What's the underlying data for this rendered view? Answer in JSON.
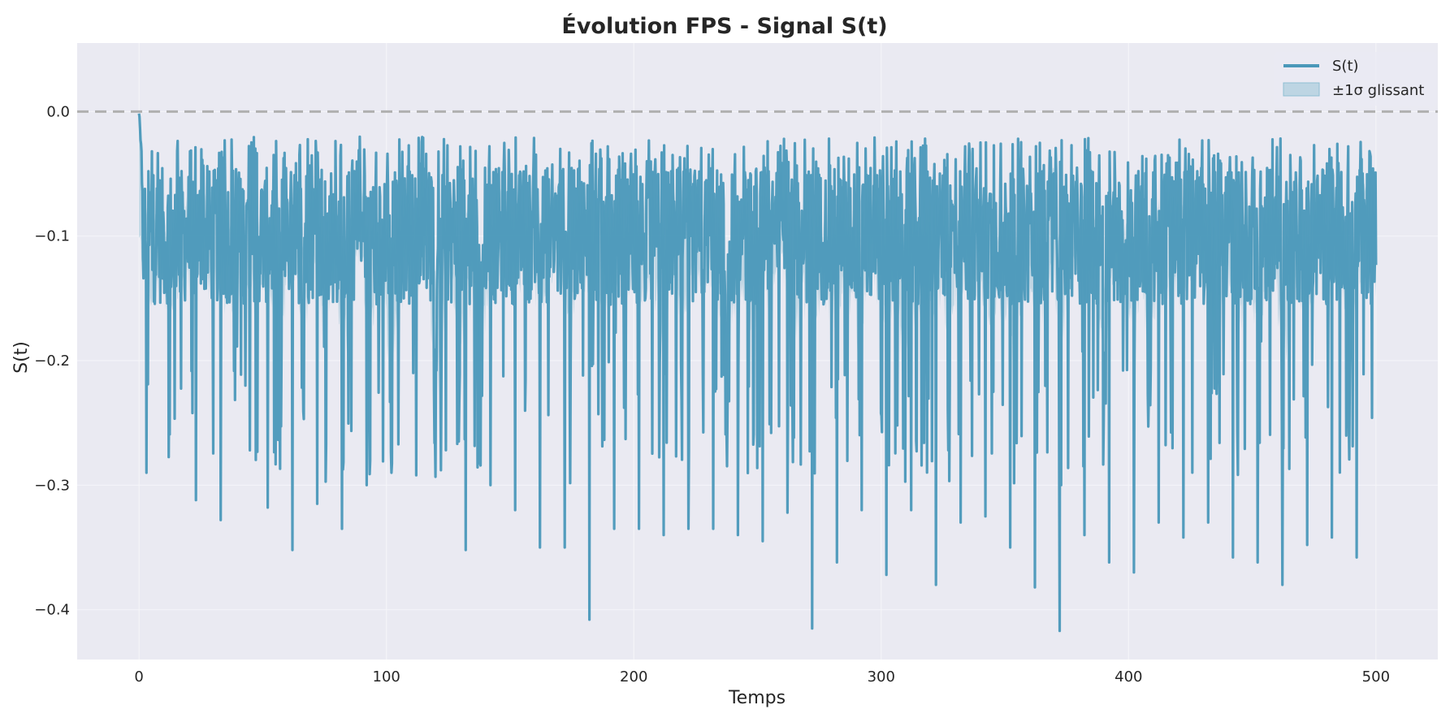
{
  "chart_data": {
    "type": "line",
    "title": "Évolution FPS - Signal S(t)",
    "xlabel": "Temps",
    "ylabel": "S(t)",
    "xlim": [
      -25,
      525
    ],
    "ylim": [
      -0.44,
      0.055
    ],
    "x_ticks": [
      0,
      100,
      200,
      300,
      400,
      500
    ],
    "x_tick_labels": [
      "0",
      "100",
      "200",
      "300",
      "400",
      "500"
    ],
    "y_ticks": [
      0.0,
      -0.1,
      -0.2,
      -0.3,
      -0.4
    ],
    "y_tick_labels": [
      "0.0",
      "−0.1",
      "−0.2",
      "−0.3",
      "−0.4"
    ],
    "grid": true,
    "reference_line": {
      "y": 0.0,
      "style": "dashed",
      "color": "#b0b0b0"
    },
    "legend": {
      "placement": "top-right",
      "entries": [
        {
          "label": "S(t)",
          "kind": "line"
        },
        {
          "label": "±1σ glissant",
          "kind": "band"
        }
      ]
    },
    "series": [
      {
        "name": "S(t)",
        "color": "#4a98b9",
        "x_start": 0,
        "x_end": 500,
        "n_points": 2500,
        "baseline_mean": -0.1,
        "oscillation_period": 9,
        "typical_min": -0.3,
        "observed_min": -0.417,
        "observed_max": 0.008,
        "deep_dips": [
          {
            "x": 3,
            "y": -0.29
          },
          {
            "x": 23,
            "y": -0.312
          },
          {
            "x": 33,
            "y": -0.328
          },
          {
            "x": 52,
            "y": -0.318
          },
          {
            "x": 62,
            "y": -0.352
          },
          {
            "x": 72,
            "y": -0.315
          },
          {
            "x": 82,
            "y": -0.335
          },
          {
            "x": 92,
            "y": -0.3
          },
          {
            "x": 102,
            "y": -0.29
          },
          {
            "x": 112,
            "y": -0.292
          },
          {
            "x": 122,
            "y": -0.288
          },
          {
            "x": 132,
            "y": -0.352
          },
          {
            "x": 142,
            "y": -0.3
          },
          {
            "x": 152,
            "y": -0.32
          },
          {
            "x": 162,
            "y": -0.35
          },
          {
            "x": 172,
            "y": -0.35
          },
          {
            "x": 182,
            "y": -0.408
          },
          {
            "x": 192,
            "y": -0.335
          },
          {
            "x": 202,
            "y": -0.335
          },
          {
            "x": 212,
            "y": -0.34
          },
          {
            "x": 222,
            "y": -0.335
          },
          {
            "x": 232,
            "y": -0.335
          },
          {
            "x": 242,
            "y": -0.34
          },
          {
            "x": 252,
            "y": -0.345
          },
          {
            "x": 262,
            "y": -0.322
          },
          {
            "x": 272,
            "y": -0.415
          },
          {
            "x": 282,
            "y": -0.362
          },
          {
            "x": 292,
            "y": -0.32
          },
          {
            "x": 302,
            "y": -0.372
          },
          {
            "x": 312,
            "y": -0.32
          },
          {
            "x": 322,
            "y": -0.38
          },
          {
            "x": 332,
            "y": -0.33
          },
          {
            "x": 342,
            "y": -0.325
          },
          {
            "x": 352,
            "y": -0.35
          },
          {
            "x": 362,
            "y": -0.382
          },
          {
            "x": 372,
            "y": -0.417
          },
          {
            "x": 382,
            "y": -0.34
          },
          {
            "x": 392,
            "y": -0.362
          },
          {
            "x": 402,
            "y": -0.37
          },
          {
            "x": 412,
            "y": -0.33
          },
          {
            "x": 422,
            "y": -0.342
          },
          {
            "x": 432,
            "y": -0.33
          },
          {
            "x": 442,
            "y": -0.358
          },
          {
            "x": 452,
            "y": -0.362
          },
          {
            "x": 462,
            "y": -0.38
          },
          {
            "x": 472,
            "y": -0.348
          },
          {
            "x": 482,
            "y": -0.342
          },
          {
            "x": 492,
            "y": -0.358
          }
        ]
      },
      {
        "name": "±1σ glissant",
        "kind": "band",
        "color": "#8fbfd3",
        "initial_spread": 0.03,
        "typical_spread": 0.025
      }
    ]
  },
  "colors": {
    "plot_background": "#eaeaf2",
    "grid": "#f4f4f8",
    "line": "#4a98b9",
    "band": "#8fbfd3",
    "reference": "#b0b0b0",
    "text": "#262626"
  }
}
